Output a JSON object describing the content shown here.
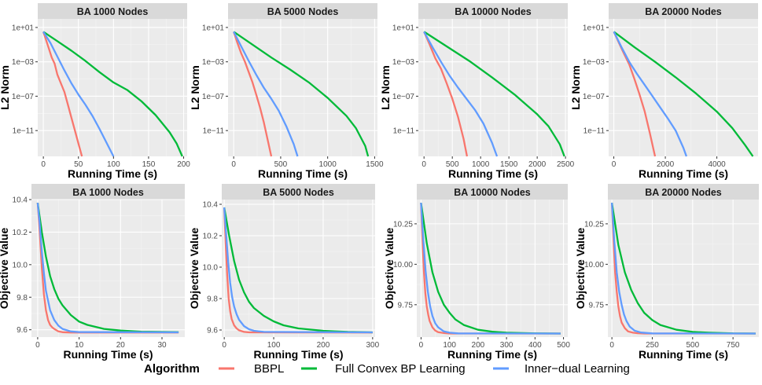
{
  "legend": {
    "title": "Algorithm",
    "entries": [
      {
        "name": "BBPL",
        "color": "#F8766D"
      },
      {
        "name": "Full Convex BP Learning",
        "color": "#00BA38"
      },
      {
        "name": "Inner−dual Learning",
        "color": "#619CFF"
      }
    ]
  },
  "chart_data": [
    {
      "type": "line",
      "title": "BA 1000 Nodes",
      "xlabel": "Running Time (s)",
      "ylabel": "L2 Norm",
      "yscale": "log",
      "ylim_exp": [
        -14,
        2
      ],
      "xticks": [
        0,
        50,
        100,
        150,
        200
      ],
      "xtick_labels": [
        "0",
        "50",
        "100",
        "150",
        "200"
      ],
      "yticks_exp": [
        1,
        -3,
        -7,
        -11
      ],
      "ytick_labels": [
        "1e+01",
        "1e−03",
        "1e−07",
        "1e−11"
      ],
      "xlim": [
        -8,
        205
      ],
      "series": [
        {
          "name": "BBPL",
          "x": [
            0,
            4,
            8,
            12,
            16,
            20,
            25,
            30,
            35,
            40,
            45,
            50,
            55
          ],
          "y": [
            0.5,
            -0.5,
            -1.5,
            -2.5,
            -3.2,
            -4.5,
            -5.5,
            -6.5,
            -8,
            -9.5,
            -11,
            -12.5,
            -14
          ]
        },
        {
          "name": "Full Convex BP Learning",
          "x": [
            0,
            20,
            40,
            60,
            80,
            100,
            120,
            140,
            160,
            180,
            190,
            198
          ],
          "y": [
            0.5,
            -0.6,
            -1.7,
            -2.9,
            -4.2,
            -5.4,
            -6.3,
            -7.6,
            -9.2,
            -11.2,
            -12.5,
            -14
          ]
        },
        {
          "name": "Inner−dual Learning",
          "x": [
            0,
            10,
            20,
            30,
            40,
            50,
            60,
            70,
            80,
            90,
            100
          ],
          "y": [
            0.5,
            -0.8,
            -2.4,
            -4.0,
            -5.5,
            -6.8,
            -8.0,
            -9.3,
            -10.8,
            -12.4,
            -14
          ]
        }
      ]
    },
    {
      "type": "line",
      "title": "BA 5000 Nodes",
      "xlabel": "Running Time (s)",
      "ylabel": "L2 Norm",
      "yscale": "log",
      "ylim_exp": [
        -14,
        2
      ],
      "xticks": [
        0,
        500,
        1000,
        1500
      ],
      "xtick_labels": [
        "0",
        "500",
        "1000",
        "1500"
      ],
      "yticks_exp": [
        1,
        -3,
        -7,
        -11
      ],
      "ytick_labels": [
        "1e+01",
        "1e−03",
        "1e−07",
        "1e−11"
      ],
      "xlim": [
        -60,
        1530
      ],
      "series": [
        {
          "name": "BBPL",
          "x": [
            0,
            40,
            80,
            120,
            160,
            200,
            240,
            280,
            320,
            360,
            400
          ],
          "y": [
            0.5,
            -0.8,
            -2.0,
            -3.0,
            -4.2,
            -5.4,
            -6.8,
            -8.3,
            -10.0,
            -12.0,
            -14
          ]
        },
        {
          "name": "Full Convex BP Learning",
          "x": [
            0,
            200,
            400,
            600,
            800,
            1000,
            1200,
            1300,
            1400,
            1430
          ],
          "y": [
            0.5,
            -1.0,
            -2.5,
            -3.9,
            -5.4,
            -7.2,
            -9.3,
            -10.7,
            -12.8,
            -14
          ]
        },
        {
          "name": "Inner−dual Learning",
          "x": [
            0,
            80,
            160,
            240,
            320,
            400,
            480,
            560,
            640,
            680
          ],
          "y": [
            0.5,
            -1.2,
            -2.9,
            -4.5,
            -6.0,
            -7.3,
            -8.7,
            -10.5,
            -12.6,
            -14
          ]
        }
      ]
    },
    {
      "type": "line",
      "title": "BA 10000 Nodes",
      "xlabel": "Running Time (s)",
      "ylabel": "L2 Norm",
      "yscale": "log",
      "ylim_exp": [
        -14,
        2
      ],
      "xticks": [
        0,
        500,
        1000,
        1500,
        2000,
        2500
      ],
      "xtick_labels": [
        "0",
        "500",
        "1000",
        "1500",
        "2000",
        "2500"
      ],
      "yticks_exp": [
        1,
        -3,
        -7,
        -11
      ],
      "ytick_labels": [
        "1e+01",
        "1e−03",
        "1e−07",
        "1e−11"
      ],
      "xlim": [
        -100,
        2540
      ],
      "series": [
        {
          "name": "BBPL",
          "x": [
            0,
            100,
            200,
            300,
            400,
            500,
            600,
            700,
            760
          ],
          "y": [
            0.5,
            -1.0,
            -2.6,
            -3.8,
            -5.5,
            -7.3,
            -9.4,
            -12.0,
            -14
          ]
        },
        {
          "name": "Full Convex BP Learning",
          "x": [
            0,
            400,
            800,
            1200,
            1600,
            2000,
            2200,
            2400,
            2480
          ],
          "y": [
            0.5,
            -1.2,
            -2.9,
            -4.8,
            -6.8,
            -9.1,
            -10.5,
            -12.6,
            -14
          ]
        },
        {
          "name": "Inner−dual Learning",
          "x": [
            0,
            150,
            300,
            450,
            600,
            750,
            900,
            1050,
            1200,
            1290
          ],
          "y": [
            0.5,
            -1.3,
            -3.0,
            -4.6,
            -6.0,
            -7.3,
            -8.6,
            -10.2,
            -12.4,
            -14
          ]
        }
      ]
    },
    {
      "type": "line",
      "title": "BA 20000 Nodes",
      "xlabel": "Running Time (s)",
      "ylabel": "L2 Norm",
      "yscale": "log",
      "ylim_exp": [
        -14,
        2
      ],
      "xticks": [
        0,
        2000,
        4000
      ],
      "xtick_labels": [
        "0",
        "2000",
        "4000"
      ],
      "yticks_exp": [
        1,
        -3,
        -7,
        -11
      ],
      "ytick_labels": [
        "1e+01",
        "1e−03",
        "1e−07",
        "1e−11"
      ],
      "xlim": [
        -200,
        5600
      ],
      "series": [
        {
          "name": "BBPL",
          "x": [
            0,
            200,
            400,
            600,
            800,
            1000,
            1200,
            1400,
            1600
          ],
          "y": [
            0.5,
            -0.8,
            -2.1,
            -3.3,
            -5.0,
            -6.8,
            -8.8,
            -11.3,
            -14
          ]
        },
        {
          "name": "Full Convex BP Learning",
          "x": [
            0,
            800,
            1600,
            2400,
            3200,
            4000,
            4600,
            5100,
            5400
          ],
          "y": [
            0.5,
            -1.3,
            -3.0,
            -4.8,
            -6.7,
            -8.8,
            -10.7,
            -12.7,
            -14
          ]
        },
        {
          "name": "Inner−dual Learning",
          "x": [
            0,
            300,
            600,
            900,
            1200,
            1500,
            1800,
            2100,
            2400,
            2700,
            2820
          ],
          "y": [
            0.5,
            -1.3,
            -3.0,
            -4.4,
            -5.7,
            -7.0,
            -8.3,
            -9.6,
            -11.0,
            -13.0,
            -14
          ]
        }
      ]
    },
    {
      "type": "line",
      "title": "BA 1000 Nodes",
      "xlabel": "Running Time (s)",
      "ylabel": "Objective Value",
      "ylim": [
        9.555,
        10.4
      ],
      "xticks": [
        0,
        10,
        20,
        30
      ],
      "xtick_labels": [
        "0",
        "10",
        "20",
        "30"
      ],
      "yticks": [
        9.6,
        9.8,
        10.0,
        10.2,
        10.4
      ],
      "ytick_labels": [
        "9.6",
        "9.8",
        "10.0",
        "10.2",
        "10.4"
      ],
      "xlim": [
        -1.5,
        35.5
      ],
      "series": [
        {
          "name": "BBPL",
          "x": [
            0,
            0.5,
            1,
            1.5,
            2,
            2.5,
            3,
            3.5,
            4,
            5,
            6,
            8,
            34
          ],
          "y": [
            10.38,
            10.2,
            9.98,
            9.82,
            9.72,
            9.66,
            9.63,
            9.615,
            9.605,
            9.59,
            9.585,
            9.583,
            9.583
          ]
        },
        {
          "name": "Full Convex BP Learning",
          "x": [
            0,
            1,
            2,
            3,
            4,
            5,
            6,
            8,
            10,
            12,
            16,
            20,
            25,
            34
          ],
          "y": [
            10.38,
            10.2,
            10.05,
            9.93,
            9.85,
            9.79,
            9.75,
            9.69,
            9.65,
            9.63,
            9.605,
            9.595,
            9.588,
            9.585
          ]
        },
        {
          "name": "Inner−dual Learning",
          "x": [
            0,
            0.5,
            1,
            1.5,
            2,
            3,
            4,
            5,
            6,
            8,
            10,
            34
          ],
          "y": [
            10.38,
            10.25,
            10.08,
            9.95,
            9.84,
            9.72,
            9.66,
            9.625,
            9.605,
            9.59,
            9.586,
            9.584
          ]
        }
      ]
    },
    {
      "type": "line",
      "title": "BA 5000 Nodes",
      "xlabel": "Running Time (s)",
      "ylabel": "Objective Value",
      "ylim": [
        9.555,
        10.43
      ],
      "xticks": [
        0,
        100,
        200,
        300
      ],
      "xtick_labels": [
        "0",
        "100",
        "200",
        "300"
      ],
      "yticks": [
        9.6,
        9.8,
        10.0,
        10.2,
        10.4
      ],
      "ytick_labels": [
        "9.6",
        "9.8",
        "10.0",
        "10.2",
        "10.4"
      ],
      "xlim": [
        -5,
        305
      ],
      "series": [
        {
          "name": "BBPL",
          "x": [
            0,
            3,
            6,
            9,
            12,
            15,
            20,
            25,
            30,
            40,
            50,
            300
          ],
          "y": [
            10.38,
            10.15,
            9.95,
            9.8,
            9.72,
            9.67,
            9.63,
            9.61,
            9.598,
            9.588,
            9.585,
            9.584
          ]
        },
        {
          "name": "Full Convex BP Learning",
          "x": [
            0,
            10,
            20,
            30,
            40,
            50,
            60,
            80,
            100,
            120,
            150,
            200,
            250,
            300
          ],
          "y": [
            10.38,
            10.2,
            10.04,
            9.92,
            9.84,
            9.78,
            9.74,
            9.69,
            9.655,
            9.63,
            9.61,
            9.595,
            9.588,
            9.585
          ]
        },
        {
          "name": "Inner−dual Learning",
          "x": [
            0,
            4,
            8,
            12,
            16,
            20,
            25,
            30,
            40,
            50,
            60,
            80,
            300
          ],
          "y": [
            10.38,
            10.2,
            10.03,
            9.9,
            9.81,
            9.75,
            9.7,
            9.665,
            9.625,
            9.605,
            9.595,
            9.588,
            9.585
          ]
        }
      ]
    },
    {
      "type": "line",
      "title": "BA 10000 Nodes",
      "xlabel": "Running Time (s)",
      "ylabel": "Objective Value",
      "ylim": [
        9.55,
        10.4
      ],
      "xticks": [
        0,
        100,
        200,
        300,
        400,
        500
      ],
      "xtick_labels": [
        "0",
        "100",
        "200",
        "300",
        "400",
        "500"
      ],
      "yticks": [
        9.75,
        10.0,
        10.25
      ],
      "ytick_labels": [
        "9.75",
        "10.00",
        "10.25"
      ],
      "xlim": [
        -15,
        515
      ],
      "series": [
        {
          "name": "BBPL",
          "x": [
            0,
            5,
            10,
            15,
            20,
            25,
            30,
            40,
            50,
            60,
            80,
            100,
            490
          ],
          "y": [
            10.38,
            10.15,
            9.95,
            9.82,
            9.74,
            9.69,
            9.65,
            9.61,
            9.59,
            9.58,
            9.575,
            9.572,
            9.572
          ]
        },
        {
          "name": "Full Convex BP Learning",
          "x": [
            0,
            20,
            40,
            60,
            80,
            100,
            120,
            150,
            200,
            250,
            300,
            400,
            490
          ],
          "y": [
            10.38,
            10.13,
            9.95,
            9.83,
            9.75,
            9.7,
            9.66,
            9.625,
            9.595,
            9.583,
            9.577,
            9.573,
            9.572
          ]
        },
        {
          "name": "Inner−dual Learning",
          "x": [
            0,
            8,
            16,
            24,
            32,
            40,
            50,
            60,
            80,
            100,
            130,
            490
          ],
          "y": [
            10.38,
            10.15,
            9.96,
            9.83,
            9.74,
            9.68,
            9.635,
            9.61,
            9.585,
            9.577,
            9.573,
            9.572
          ]
        }
      ]
    },
    {
      "type": "line",
      "title": "BA 20000 Nodes",
      "xlabel": "Running Time (s)",
      "ylabel": "Objective Value",
      "ylim": [
        9.55,
        10.4
      ],
      "xticks": [
        0,
        250,
        500,
        750
      ],
      "xtick_labels": [
        "0",
        "250",
        "500",
        "750"
      ],
      "yticks": [
        9.75,
        10.0,
        10.25
      ],
      "ytick_labels": [
        "9.75",
        "10.00",
        "10.25"
      ],
      "xlim": [
        -25,
        910
      ],
      "series": [
        {
          "name": "BBPL",
          "x": [
            0,
            10,
            20,
            30,
            40,
            50,
            60,
            80,
            100,
            130,
            160,
            200,
            890
          ],
          "y": [
            10.38,
            10.15,
            9.95,
            9.83,
            9.74,
            9.68,
            9.64,
            9.605,
            9.585,
            9.577,
            9.574,
            9.572,
            9.572
          ]
        },
        {
          "name": "Full Convex BP Learning",
          "x": [
            0,
            40,
            80,
            120,
            160,
            200,
            250,
            300,
            400,
            500,
            600,
            750,
            890
          ],
          "y": [
            10.38,
            10.12,
            9.95,
            9.84,
            9.76,
            9.7,
            9.655,
            9.625,
            9.595,
            9.582,
            9.577,
            9.573,
            9.572
          ]
        },
        {
          "name": "Inner−dual Learning",
          "x": [
            0,
            15,
            30,
            45,
            60,
            75,
            90,
            110,
            140,
            180,
            250,
            890
          ],
          "y": [
            10.38,
            10.14,
            9.95,
            9.83,
            9.75,
            9.69,
            9.65,
            9.615,
            9.59,
            9.578,
            9.573,
            9.572
          ]
        }
      ]
    }
  ]
}
